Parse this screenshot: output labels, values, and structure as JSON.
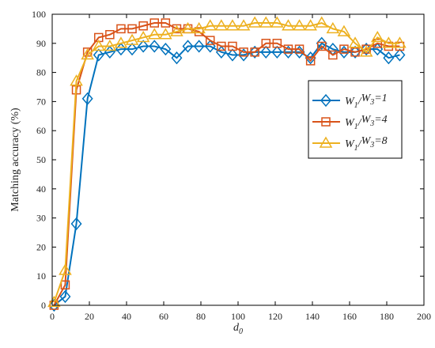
{
  "chart_data": {
    "type": "line",
    "xlabel": "d",
    "xlabel_sub": "0",
    "ylabel": "Matching accuracy (%)",
    "xlim": [
      0,
      200
    ],
    "ylim": [
      0,
      100
    ],
    "xticks": [
      0,
      20,
      40,
      60,
      80,
      100,
      120,
      140,
      160,
      180,
      200
    ],
    "yticks": [
      0,
      10,
      20,
      30,
      40,
      50,
      60,
      70,
      80,
      90,
      100
    ],
    "grid": false,
    "legend": {
      "position": "right-middle",
      "entries": [
        "W1/W3=1",
        "W1/W3=4",
        "W1/W3=8"
      ]
    },
    "series": [
      {
        "name": "W1/W3=1",
        "color": "#0072BD",
        "marker": "diamond",
        "legend": {
          "a": "W",
          "a_sub": "1",
          "b": "W",
          "b_sub": "3",
          "eq": "=1"
        },
        "x": [
          1,
          7,
          13,
          19,
          25,
          31,
          37,
          43,
          49,
          55,
          61,
          67,
          73,
          79,
          85,
          91,
          97,
          103,
          109,
          115,
          121,
          127,
          133,
          139,
          145,
          151,
          157,
          163,
          169,
          175,
          181,
          187
        ],
        "y": [
          0,
          3,
          28,
          71,
          86,
          87,
          88,
          88,
          89,
          89,
          88,
          85,
          89,
          89,
          89,
          87,
          86,
          86,
          87,
          87,
          87,
          87,
          87,
          85,
          90,
          88,
          87,
          87,
          88,
          88,
          85,
          86
        ]
      },
      {
        "name": "W1/W3=4",
        "color": "#D95319",
        "marker": "square",
        "legend": {
          "a": "W",
          "a_sub": "1",
          "b": "W",
          "b_sub": "3",
          "eq": "=4"
        },
        "x": [
          1,
          7,
          13,
          19,
          25,
          31,
          37,
          43,
          49,
          55,
          61,
          67,
          73,
          79,
          85,
          91,
          97,
          103,
          109,
          115,
          121,
          127,
          133,
          139,
          145,
          151,
          157,
          163,
          169,
          175,
          181,
          187
        ],
        "y": [
          0,
          7,
          74,
          87,
          92,
          93,
          95,
          95,
          96,
          97,
          97,
          95,
          95,
          94,
          91,
          89,
          89,
          87,
          87,
          90,
          90,
          88,
          88,
          84,
          89,
          86,
          88,
          87,
          88,
          90,
          89,
          89
        ]
      },
      {
        "name": "W1/W3=8",
        "color": "#EDB120",
        "marker": "triangle",
        "legend": {
          "a": "W",
          "a_sub": "1",
          "b": "W",
          "b_sub": "3",
          "eq": "=8"
        },
        "x": [
          1,
          7,
          13,
          19,
          25,
          31,
          37,
          43,
          49,
          55,
          61,
          67,
          73,
          79,
          85,
          91,
          97,
          103,
          109,
          115,
          121,
          127,
          133,
          139,
          145,
          151,
          157,
          163,
          169,
          175,
          181,
          187
        ],
        "y": [
          1,
          12,
          77,
          86,
          89,
          89,
          90,
          91,
          92,
          93,
          93,
          94,
          95,
          95,
          96,
          96,
          96,
          96,
          97,
          97,
          97,
          96,
          96,
          96,
          97,
          95,
          94,
          90,
          87,
          92,
          90,
          90
        ]
      }
    ]
  }
}
